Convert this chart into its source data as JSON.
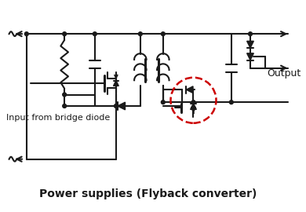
{
  "title": "Power supplies (Flyback converter)",
  "label_input": "Input from bridge diode",
  "label_output": "Output",
  "bg_color": "#ffffff",
  "lc": "#1a1a1a",
  "dashed_circle_color": "#cc0000",
  "title_fontsize": 10,
  "input_fontsize": 8,
  "output_fontsize": 9,
  "lw": 1.5,
  "lw2": 2.2
}
